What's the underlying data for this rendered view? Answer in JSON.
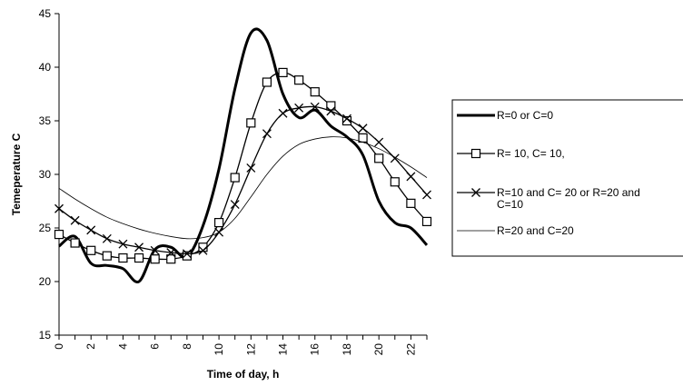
{
  "chart_data": {
    "type": "line",
    "xlabel": "Time of day, h",
    "ylabel": "Temeperature C",
    "xlim": [
      0,
      23
    ],
    "ylim": [
      15,
      45
    ],
    "x_ticks": [
      "0",
      "2",
      "4",
      "6",
      "8",
      "10",
      "12",
      "14",
      "16",
      "18",
      "20",
      "22"
    ],
    "y_ticks": [
      "15",
      "20",
      "25",
      "30",
      "35",
      "40",
      "45"
    ],
    "grid": false,
    "legend_position": "right",
    "x": [
      0,
      1,
      2,
      3,
      4,
      5,
      6,
      7,
      8,
      9,
      10,
      11,
      12,
      13,
      14,
      15,
      16,
      17,
      18,
      19,
      20,
      21,
      22,
      23
    ],
    "series": [
      {
        "name": "R=0 or C=0",
        "marker": "none",
        "line": "bold",
        "values": [
          23.3,
          24.2,
          21.7,
          21.5,
          21.2,
          20.0,
          23.0,
          23.2,
          22.3,
          25.2,
          30.5,
          38.0,
          43.2,
          42.5,
          37.5,
          35.3,
          36.0,
          34.5,
          33.5,
          31.8,
          27.5,
          25.5,
          25.0,
          23.4
        ]
      },
      {
        "name": "R= 10, C= 10,",
        "marker": "square",
        "line": "medium",
        "values": [
          24.4,
          23.6,
          22.9,
          22.4,
          22.2,
          22.2,
          22.1,
          22.1,
          22.4,
          23.2,
          25.5,
          29.7,
          34.8,
          38.6,
          39.5,
          38.8,
          37.7,
          36.4,
          35.0,
          33.4,
          31.5,
          29.3,
          27.3,
          25.6
        ]
      },
      {
        "name": "R=10 and C= 20 or R=20 and C=10",
        "marker": "x",
        "line": "medium",
        "values": [
          26.8,
          25.7,
          24.8,
          24.0,
          23.5,
          23.2,
          22.9,
          22.7,
          22.6,
          22.9,
          24.6,
          27.2,
          30.6,
          33.8,
          35.7,
          36.2,
          36.3,
          35.9,
          35.2,
          34.3,
          33.0,
          31.5,
          29.8,
          28.1
        ]
      },
      {
        "name": "R=20 and C=20",
        "marker": "none",
        "line": "thin",
        "values": [
          28.7,
          27.7,
          26.8,
          26.0,
          25.4,
          24.9,
          24.5,
          24.2,
          24.0,
          24.1,
          24.6,
          25.9,
          27.9,
          30.0,
          31.7,
          32.8,
          33.3,
          33.5,
          33.4,
          33.0,
          32.4,
          31.6,
          30.7,
          29.7
        ]
      }
    ]
  }
}
